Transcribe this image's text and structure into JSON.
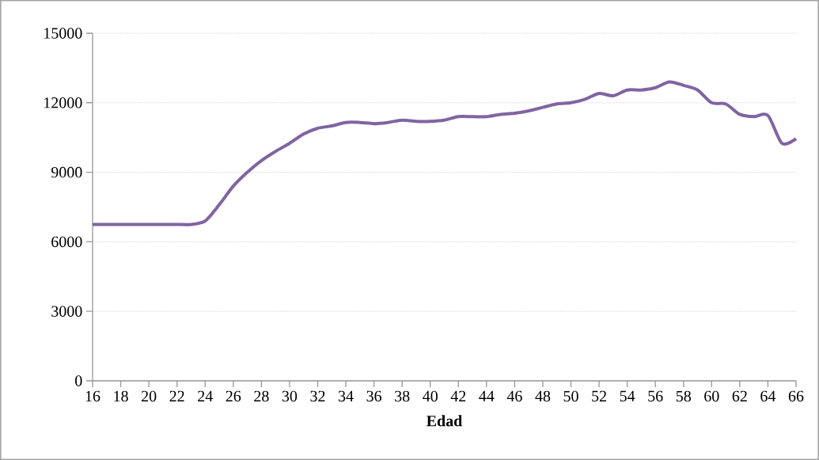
{
  "chart_data": {
    "type": "line",
    "xlabel": "Edad",
    "x": [
      16,
      17,
      18,
      19,
      20,
      21,
      22,
      23,
      24,
      25,
      26,
      27,
      28,
      29,
      30,
      31,
      32,
      33,
      34,
      35,
      36,
      37,
      38,
      39,
      40,
      41,
      42,
      43,
      44,
      45,
      46,
      47,
      48,
      49,
      50,
      51,
      52,
      53,
      54,
      55,
      56,
      57,
      58,
      59,
      60,
      61,
      62,
      63,
      64,
      65,
      66
    ],
    "series": [
      {
        "color": "#8064a2",
        "values": [
          6750,
          6750,
          6750,
          6750,
          6750,
          6750,
          6750,
          6750,
          6900,
          7600,
          8400,
          9000,
          9500,
          9900,
          10250,
          10650,
          10900,
          11000,
          11150,
          11150,
          11100,
          11150,
          11250,
          11200,
          11200,
          11250,
          11400,
          11400,
          11400,
          11500,
          11550,
          11650,
          11800,
          11950,
          12000,
          12150,
          12400,
          12300,
          12550,
          12550,
          12650,
          12900,
          12750,
          12550,
          12000,
          11950,
          11500,
          11400,
          11450,
          10250,
          10450
        ]
      }
    ],
    "xlim": [
      16,
      66
    ],
    "xticks": [
      16,
      18,
      20,
      22,
      24,
      26,
      28,
      30,
      32,
      34,
      36,
      38,
      40,
      42,
      44,
      46,
      48,
      50,
      52,
      54,
      56,
      58,
      60,
      62,
      64,
      66
    ],
    "ylim": [
      0,
      15000
    ],
    "yticks": [
      0,
      3000,
      6000,
      9000,
      12000,
      15000
    ],
    "grid": "y",
    "marker": "none",
    "line_style": "solid"
  }
}
